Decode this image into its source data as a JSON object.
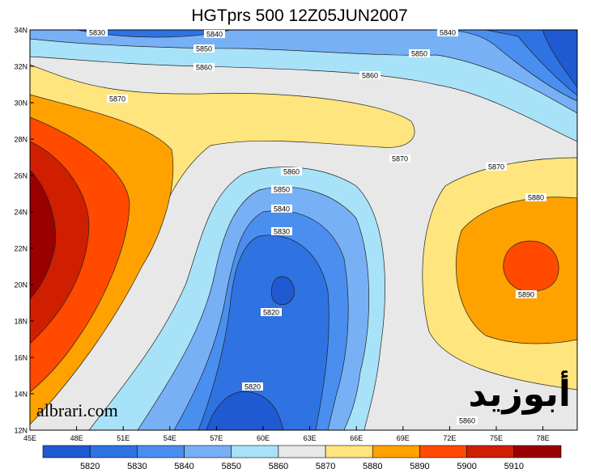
{
  "title": "HGTprs 500 12Z05JUN2007",
  "lat_labels": [
    "34N",
    "32N",
    "30N",
    "28N",
    "26N",
    "24N",
    "22N",
    "20N",
    "18N",
    "16N",
    "14N",
    "12N"
  ],
  "lon_labels": [
    "45E",
    "48E",
    "51E",
    "54E",
    "57E",
    "60E",
    "63E",
    "66E",
    "69E",
    "72E",
    "75E",
    "78E"
  ],
  "colorbar": {
    "levels": [
      5820,
      5830,
      5840,
      5850,
      5860,
      5870,
      5880,
      5890,
      5900,
      5910
    ],
    "colors": [
      "#1f5ad2",
      "#2f72e2",
      "#4a8ef0",
      "#78b0f6",
      "#a8e2f8",
      "#e8e8e8",
      "#ffe57e",
      "#ffa200",
      "#ff4a00",
      "#d01e00",
      "#9a0000"
    ]
  },
  "contour_labels": [
    5830,
    5840,
    5840,
    5850,
    5850,
    5860,
    5860,
    5870,
    5870,
    5870,
    5880,
    5860,
    5850,
    5840,
    5830,
    5820,
    5820,
    5890,
    5860
  ],
  "watermarks": [
    "albrari.com",
    "أبوزيد"
  ]
}
